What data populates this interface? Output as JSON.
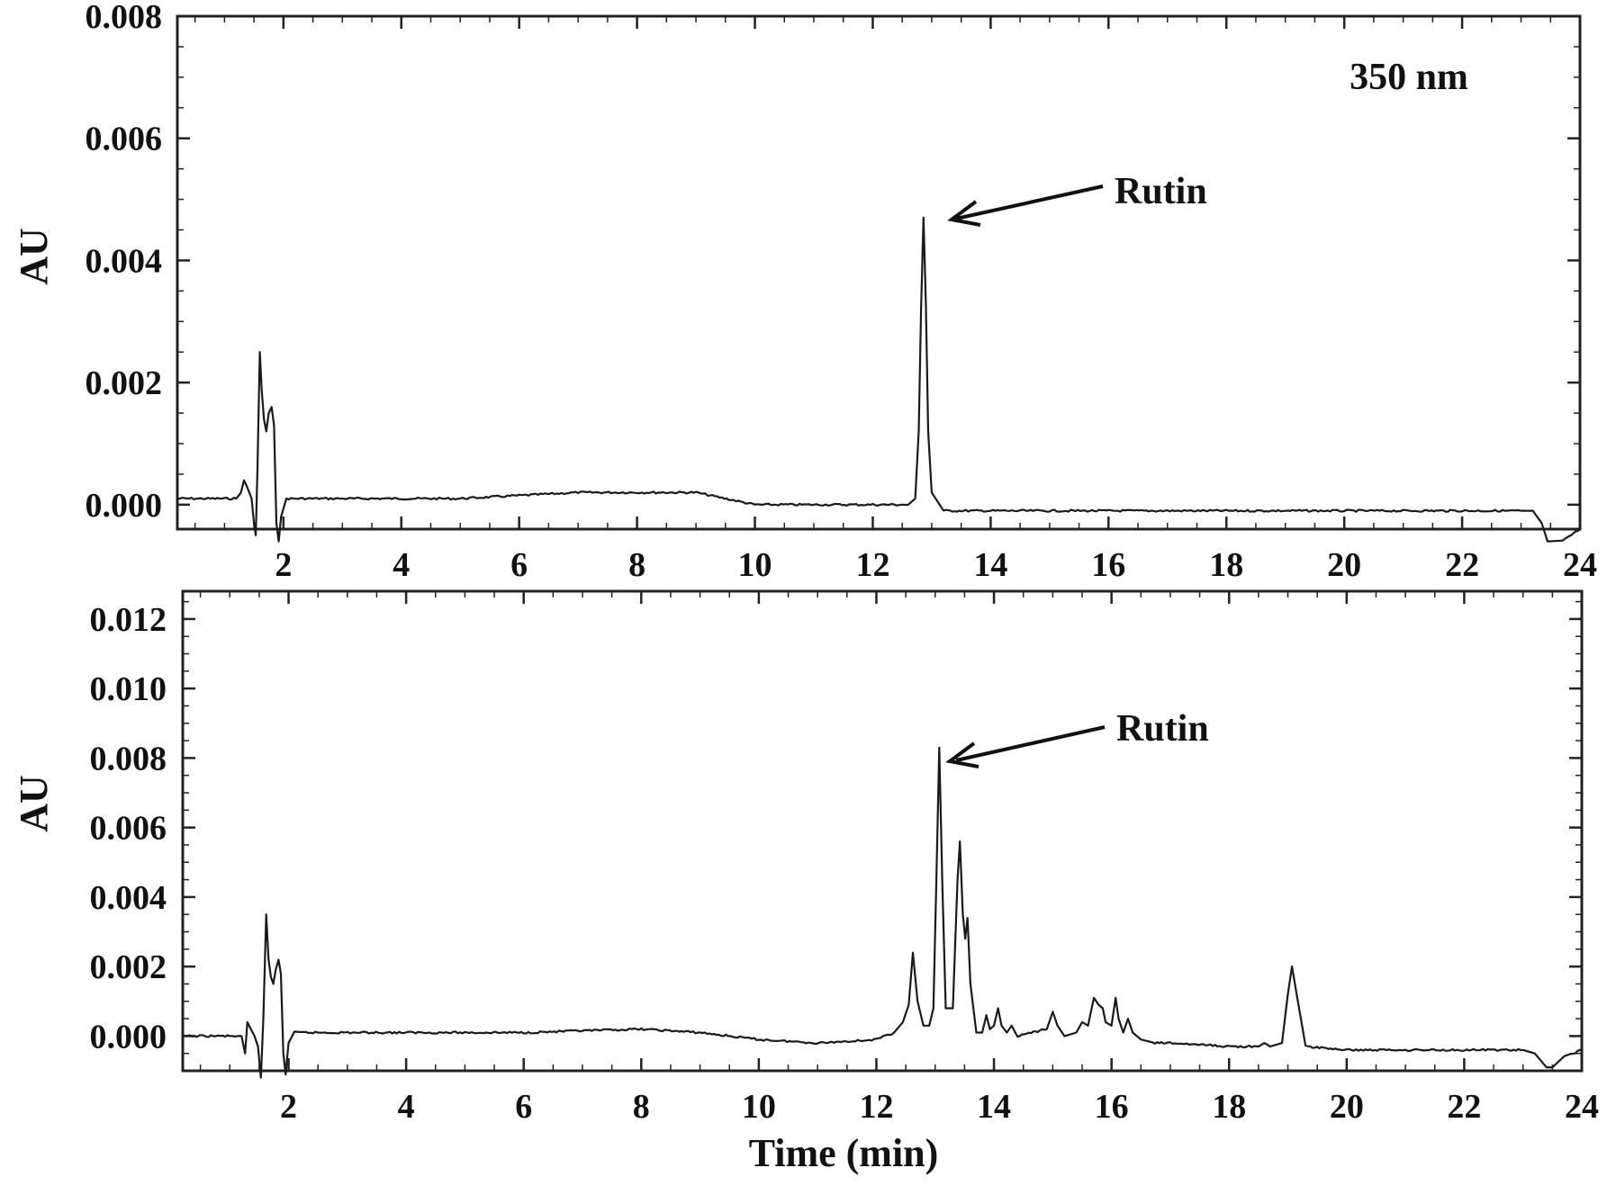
{
  "chart_data": [
    {
      "type": "line",
      "panel": "top",
      "xlabel": "",
      "ylabel": "AU",
      "annotation_wavelength": "350 nm",
      "xlim": [
        0.2,
        24
      ],
      "ylim": [
        -0.0004,
        0.008
      ],
      "x_ticks": [
        "2",
        "4",
        "6",
        "8",
        "10",
        "12",
        "14",
        "16",
        "18",
        "20",
        "22",
        "24"
      ],
      "y_ticks": [
        "0.000",
        "0.002",
        "0.004",
        "0.006",
        "0.008"
      ],
      "peak_label": {
        "text": "Rutin",
        "x": 12.85,
        "y": 0.0047
      },
      "series": [
        {
          "points": [
            [
              0.2,
              0.0001
            ],
            [
              1.2,
              0.0001
            ],
            [
              1.28,
              0.0002
            ],
            [
              1.33,
              0.0004
            ],
            [
              1.38,
              0.0003
            ],
            [
              1.42,
              0.0002
            ],
            [
              1.46,
              0.0001
            ],
            [
              1.5,
              -0.0003
            ],
            [
              1.53,
              -0.0005
            ],
            [
              1.56,
              0.0006
            ],
            [
              1.6,
              0.0025
            ],
            [
              1.63,
              0.0019
            ],
            [
              1.67,
              0.0014
            ],
            [
              1.71,
              0.0012
            ],
            [
              1.75,
              0.0015
            ],
            [
              1.8,
              0.0016
            ],
            [
              1.84,
              0.0013
            ],
            [
              1.88,
              -0.0003
            ],
            [
              1.92,
              -0.0006
            ],
            [
              1.96,
              -0.0002
            ],
            [
              2.05,
              0.0001
            ],
            [
              3.0,
              0.0001
            ],
            [
              5.0,
              0.0001
            ],
            [
              7.0,
              0.0002
            ],
            [
              8.0,
              0.0002
            ],
            [
              9.0,
              0.0002
            ],
            [
              10.0,
              0.0
            ],
            [
              11.0,
              0.0
            ],
            [
              12.0,
              0.0
            ],
            [
              12.6,
              0.0
            ],
            [
              12.72,
              0.0001
            ],
            [
              12.78,
              0.0012
            ],
            [
              12.82,
              0.0032
            ],
            [
              12.86,
              0.0047
            ],
            [
              12.9,
              0.0033
            ],
            [
              12.94,
              0.0012
            ],
            [
              13.0,
              0.0002
            ],
            [
              13.2,
              -0.0001
            ],
            [
              14.0,
              -0.0001
            ],
            [
              16.0,
              -0.0001
            ],
            [
              18.0,
              -0.0001
            ],
            [
              20.0,
              -0.0001
            ],
            [
              22.0,
              -0.0001
            ],
            [
              23.0,
              -0.0001
            ],
            [
              23.2,
              -0.0001
            ],
            [
              23.35,
              -0.0003
            ],
            [
              23.45,
              -0.0006
            ],
            [
              23.7,
              -0.0006
            ],
            [
              24.0,
              -0.0004
            ]
          ]
        }
      ]
    },
    {
      "type": "line",
      "panel": "bottom",
      "xlabel": "Time (min)",
      "ylabel": "AU",
      "xlim": [
        0.2,
        24
      ],
      "ylim": [
        -0.001,
        0.0128
      ],
      "x_ticks": [
        "2",
        "4",
        "6",
        "8",
        "10",
        "12",
        "14",
        "16",
        "18",
        "20",
        "22",
        "24"
      ],
      "y_ticks": [
        "0.000",
        "0.002",
        "0.004",
        "0.006",
        "0.008",
        "0.010",
        "0.012"
      ],
      "peak_label": {
        "text": "Rutin",
        "x": 13.08,
        "y": 0.0083
      },
      "series": [
        {
          "points": [
            [
              0.2,
              0.0
            ],
            [
              1.2,
              0.0
            ],
            [
              1.26,
              -0.0005
            ],
            [
              1.3,
              0.0004
            ],
            [
              1.36,
              0.0002
            ],
            [
              1.42,
              0.0
            ],
            [
              1.48,
              -0.0003
            ],
            [
              1.53,
              -0.0012
            ],
            [
              1.57,
              0.0005
            ],
            [
              1.62,
              0.0035
            ],
            [
              1.66,
              0.0022
            ],
            [
              1.7,
              0.0017
            ],
            [
              1.74,
              0.0015
            ],
            [
              1.78,
              0.0019
            ],
            [
              1.83,
              0.0022
            ],
            [
              1.87,
              0.0018
            ],
            [
              1.91,
              -0.0005
            ],
            [
              1.95,
              -0.0011
            ],
            [
              2.0,
              -0.0002
            ],
            [
              2.1,
              0.0001
            ],
            [
              4.0,
              0.0001
            ],
            [
              6.0,
              0.0001
            ],
            [
              8.0,
              0.0002
            ],
            [
              9.0,
              0.0001
            ],
            [
              10.0,
              -0.0001
            ],
            [
              11.0,
              -0.0002
            ],
            [
              12.0,
              -0.0001
            ],
            [
              12.3,
              0.0001
            ],
            [
              12.45,
              0.0004
            ],
            [
              12.55,
              0.0009
            ],
            [
              12.62,
              0.0024
            ],
            [
              12.7,
              0.001
            ],
            [
              12.8,
              0.0003
            ],
            [
              12.9,
              0.0003
            ],
            [
              12.97,
              0.0008
            ],
            [
              13.02,
              0.0045
            ],
            [
              13.07,
              0.0083
            ],
            [
              13.12,
              0.0045
            ],
            [
              13.18,
              0.0008
            ],
            [
              13.3,
              0.0008
            ],
            [
              13.38,
              0.0045
            ],
            [
              13.42,
              0.0056
            ],
            [
              13.47,
              0.0035
            ],
            [
              13.51,
              0.0028
            ],
            [
              13.55,
              0.0034
            ],
            [
              13.6,
              0.0015
            ],
            [
              13.7,
              0.0001
            ],
            [
              13.8,
              0.0001
            ],
            [
              13.87,
              0.0006
            ],
            [
              13.93,
              0.0002
            ],
            [
              14.0,
              0.0003
            ],
            [
              14.07,
              0.0008
            ],
            [
              14.13,
              0.0003
            ],
            [
              14.22,
              0.0001
            ],
            [
              14.3,
              0.0003
            ],
            [
              14.4,
              0.0
            ],
            [
              14.9,
              0.0002
            ],
            [
              15.0,
              0.0007
            ],
            [
              15.08,
              0.0003
            ],
            [
              15.2,
              0.0
            ],
            [
              15.4,
              0.0001
            ],
            [
              15.5,
              0.0004
            ],
            [
              15.6,
              0.0003
            ],
            [
              15.7,
              0.0011
            ],
            [
              15.78,
              0.0009
            ],
            [
              15.85,
              0.0008
            ],
            [
              15.9,
              0.0004
            ],
            [
              16.0,
              0.0003
            ],
            [
              16.07,
              0.0011
            ],
            [
              16.12,
              0.0005
            ],
            [
              16.2,
              0.0001
            ],
            [
              16.28,
              0.0005
            ],
            [
              16.36,
              0.0001
            ],
            [
              16.5,
              -0.0001
            ],
            [
              16.7,
              -0.0002
            ],
            [
              17.0,
              -0.0002
            ],
            [
              18.0,
              -0.0003
            ],
            [
              18.5,
              -0.0003
            ],
            [
              18.6,
              -0.0002
            ],
            [
              18.7,
              -0.0003
            ],
            [
              18.9,
              -0.0002
            ],
            [
              19.0,
              0.0012
            ],
            [
              19.07,
              0.002
            ],
            [
              19.15,
              0.0012
            ],
            [
              19.3,
              -0.0003
            ],
            [
              20.0,
              -0.0004
            ],
            [
              21.0,
              -0.0004
            ],
            [
              22.0,
              -0.0004
            ],
            [
              23.0,
              -0.0004
            ],
            [
              23.2,
              -0.0005
            ],
            [
              23.4,
              -0.0009
            ],
            [
              23.5,
              -0.0009
            ],
            [
              23.7,
              -0.0006
            ],
            [
              24.0,
              -0.0004
            ]
          ]
        }
      ]
    }
  ]
}
